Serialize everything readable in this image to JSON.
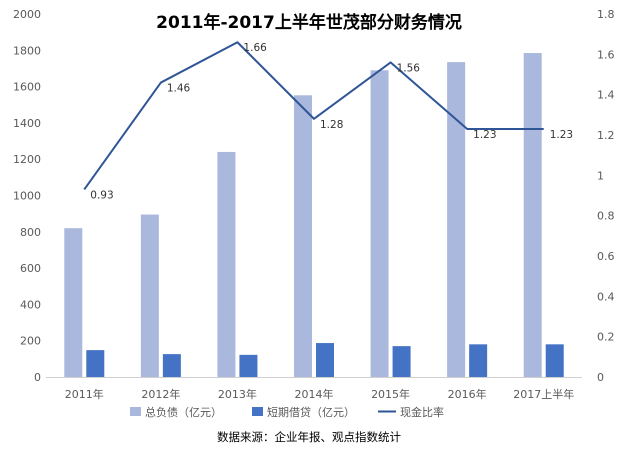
{
  "chart_data": {
    "type": "bar",
    "title": "2011年-2017上半年世茂部分财务情况",
    "categories": [
      "2011年",
      "2012年",
      "2013年",
      "2014年",
      "2015年",
      "2016年",
      "2017上半年"
    ],
    "y_left": {
      "ylim": [
        0,
        2000
      ],
      "ticks": [
        "0",
        "200",
        "400",
        "600",
        "800",
        "1000",
        "1200",
        "1400",
        "1600",
        "1800",
        "2000"
      ]
    },
    "y_right": {
      "ylim": [
        0,
        1.8
      ],
      "ticks": [
        "0",
        "0.2",
        "0.4",
        "0.6",
        "0.8",
        "1",
        "1.2",
        "1.4",
        "1.6",
        "1.8"
      ]
    },
    "series": [
      {
        "name": "总负债（亿元）",
        "type": "bar",
        "axis": "left",
        "color": "#aab8dd",
        "values": [
          820,
          895,
          1240,
          1552,
          1690,
          1735,
          1785
        ]
      },
      {
        "name": "短期借贷（亿元）",
        "type": "bar",
        "axis": "left",
        "color": "#4472c4",
        "values": [
          148,
          126,
          122,
          187,
          170,
          180,
          180
        ]
      },
      {
        "name": "现金比率",
        "type": "line",
        "axis": "right",
        "color": "#2f5597",
        "values": [
          0.93,
          1.46,
          1.66,
          1.28,
          1.56,
          1.23,
          1.23
        ],
        "labels": [
          "0.93",
          "1.46",
          "1.66",
          "1.28",
          "1.56",
          "1.23",
          "1.23"
        ]
      }
    ],
    "grid": false,
    "legend_position": "bottom"
  },
  "source": "数据来源：企业年报、观点指数统计"
}
